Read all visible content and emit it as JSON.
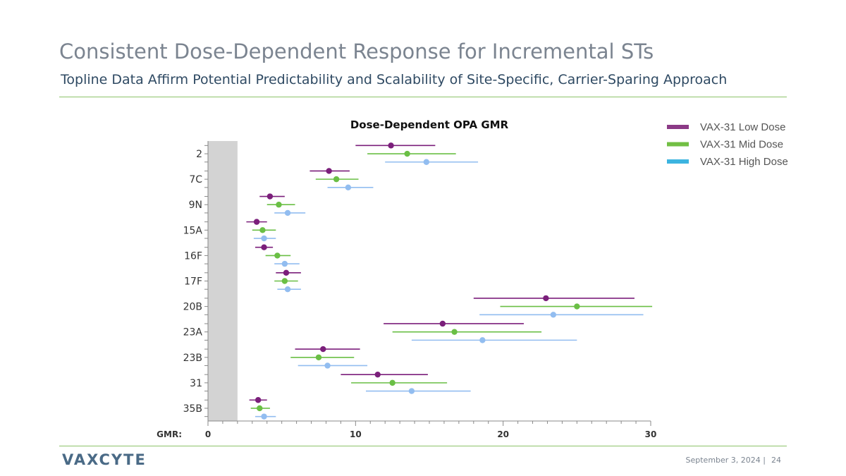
{
  "slide": {
    "title": "Consistent Dose-Dependent Response for Incremental STs",
    "subtitle": "Topline Data Affirm Potential Predictability and Scalability of Site-Specific, Carrier-Sparing Approach",
    "logo_text": "VAXCYTE",
    "footer_date": "September 3, 2024 |",
    "page_number": "24",
    "accent_color": "#8cc36a"
  },
  "chart_data": {
    "type": "scatter",
    "subtype": "forest-plot",
    "title": "Dose-Dependent OPA GMR",
    "xlabel": "GMR:",
    "xlim": [
      0,
      30
    ],
    "xticks": [
      0,
      10,
      20,
      30
    ],
    "categories": [
      "2",
      "7C",
      "9N",
      "15A",
      "16F",
      "17F",
      "20B",
      "23A",
      "23B",
      "31",
      "35B"
    ],
    "shaded_region": [
      0,
      2
    ],
    "legend_position": "top-right",
    "series": [
      {
        "name": "VAX-31 Low Dose",
        "color": "#7b1f7b",
        "legend_color": "#8b3a86",
        "points": [
          {
            "category": "2",
            "value": 12.4,
            "low": 10.0,
            "high": 15.4
          },
          {
            "category": "7C",
            "value": 8.2,
            "low": 6.9,
            "high": 9.6
          },
          {
            "category": "9N",
            "value": 4.2,
            "low": 3.5,
            "high": 5.2
          },
          {
            "category": "15A",
            "value": 3.3,
            "low": 2.6,
            "high": 4.0
          },
          {
            "category": "16F",
            "value": 3.8,
            "low": 3.2,
            "high": 4.4
          },
          {
            "category": "17F",
            "value": 5.3,
            "low": 4.6,
            "high": 6.3
          },
          {
            "category": "20B",
            "value": 22.9,
            "low": 18.0,
            "high": 28.9
          },
          {
            "category": "23A",
            "value": 15.9,
            "low": 11.9,
            "high": 21.4
          },
          {
            "category": "23B",
            "value": 7.8,
            "low": 5.9,
            "high": 10.3
          },
          {
            "category": "31",
            "value": 11.5,
            "low": 9.0,
            "high": 14.9
          },
          {
            "category": "35B",
            "value": 3.4,
            "low": 2.8,
            "high": 4.0
          }
        ]
      },
      {
        "name": "VAX-31 Mid Dose",
        "color": "#6abf45",
        "legend_color": "#72bf44",
        "points": [
          {
            "category": "2",
            "value": 13.5,
            "low": 10.8,
            "high": 16.8
          },
          {
            "category": "7C",
            "value": 8.7,
            "low": 7.3,
            "high": 10.2
          },
          {
            "category": "9N",
            "value": 4.8,
            "low": 4.0,
            "high": 5.9
          },
          {
            "category": "15A",
            "value": 3.7,
            "low": 3.0,
            "high": 4.6
          },
          {
            "category": "16F",
            "value": 4.7,
            "low": 3.9,
            "high": 5.6
          },
          {
            "category": "17F",
            "value": 5.2,
            "low": 4.5,
            "high": 6.1
          },
          {
            "category": "20B",
            "value": 25.0,
            "low": 19.8,
            "high": 30.1
          },
          {
            "category": "23A",
            "value": 16.7,
            "low": 12.5,
            "high": 22.6
          },
          {
            "category": "23B",
            "value": 7.5,
            "low": 5.6,
            "high": 9.9
          },
          {
            "category": "31",
            "value": 12.5,
            "low": 9.7,
            "high": 16.2
          },
          {
            "category": "35B",
            "value": 3.5,
            "low": 2.9,
            "high": 4.2
          }
        ]
      },
      {
        "name": "VAX-31 High Dose",
        "color": "#92bdf0",
        "legend_color": "#3cb4e0",
        "points": [
          {
            "category": "2",
            "value": 14.8,
            "low": 12.0,
            "high": 18.3
          },
          {
            "category": "7C",
            "value": 9.5,
            "low": 8.1,
            "high": 11.2
          },
          {
            "category": "9N",
            "value": 5.4,
            "low": 4.5,
            "high": 6.6
          },
          {
            "category": "15A",
            "value": 3.8,
            "low": 3.1,
            "high": 4.6
          },
          {
            "category": "16F",
            "value": 5.2,
            "low": 4.5,
            "high": 6.2
          },
          {
            "category": "17F",
            "value": 5.4,
            "low": 4.7,
            "high": 6.3
          },
          {
            "category": "20B",
            "value": 23.4,
            "low": 18.4,
            "high": 29.5
          },
          {
            "category": "23A",
            "value": 18.6,
            "low": 13.8,
            "high": 25.0
          },
          {
            "category": "23B",
            "value": 8.1,
            "low": 6.1,
            "high": 10.8
          },
          {
            "category": "31",
            "value": 13.8,
            "low": 10.7,
            "high": 17.8
          },
          {
            "category": "35B",
            "value": 3.8,
            "low": 3.2,
            "high": 4.6
          }
        ]
      }
    ]
  }
}
